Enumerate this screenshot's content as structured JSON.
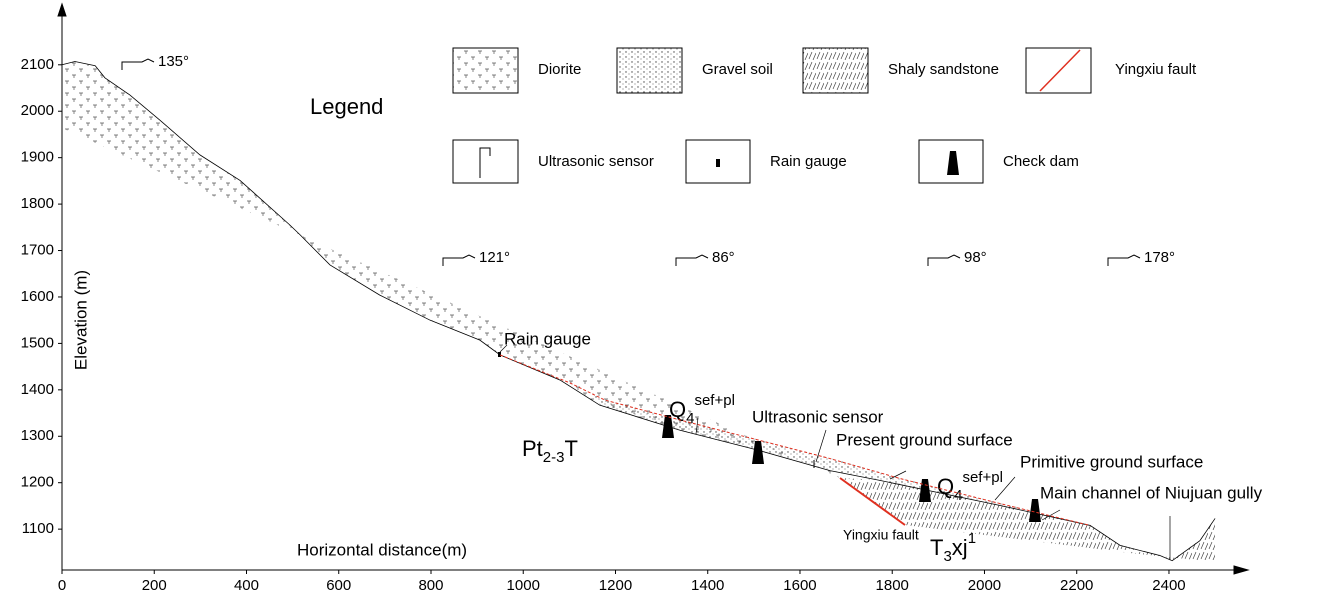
{
  "chart_data": {
    "type": "profile",
    "xlabel": "Horizontal distance(m)",
    "ylabel": "Elevation (m)",
    "xlim": [
      0,
      2554
    ],
    "ylim": [
      1012,
      2218
    ],
    "xticks": [
      0,
      200,
      400,
      600,
      800,
      1000,
      1200,
      1400,
      1600,
      1800,
      2000,
      2200,
      2400
    ],
    "yticks": [
      1100,
      1200,
      1300,
      1400,
      1500,
      1600,
      1700,
      1800,
      1900,
      2000,
      2100
    ],
    "series": [
      {
        "name": "Primitive ground surface",
        "color": "#000000",
        "x": [
          0,
          28,
          72,
          93,
          147,
          212,
          299,
          386,
          494,
          516,
          581,
          689,
          798,
          906,
          950,
          1080,
          1166,
          1340,
          1513,
          1665,
          1773,
          2034,
          2229,
          2294,
          2381,
          2407,
          2467,
          2500
        ],
        "values": [
          2100,
          2107,
          2098,
          2072,
          2035,
          1981,
          1906,
          1851,
          1755,
          1734,
          1669,
          1604,
          1550,
          1507,
          1475,
          1421,
          1367,
          1313,
          1269,
          1226,
          1205,
          1151,
          1108,
          1065,
          1043,
          1032,
          1075,
          1123
        ]
      },
      {
        "name": "Present ground surface",
        "color": "#e03020",
        "x": [
          950,
          1101,
          1177,
          1340,
          1513,
          1665,
          1817,
          2034,
          2229
        ],
        "values": [
          1475,
          1415,
          1378,
          1335,
          1291,
          1252,
          1209,
          1155,
          1108
        ]
      }
    ],
    "legend": {
      "title": "Legend",
      "items": [
        "Diorite",
        "Gravel soil",
        "Shaly sandstone",
        "Yingxiu fault",
        "Ultrasonic sensor",
        "Rain gauge",
        "Check dam"
      ]
    },
    "annotations": {
      "rain_gauge": "Rain gauge",
      "ultrasonic_sensor": "Ultrasonic sensor",
      "channel": "Main channel of Niujuan gully",
      "fault": "Yingxiu fault"
    },
    "slopes": [
      "135°",
      "121°",
      "86°",
      "98°",
      "178°"
    ],
    "formations": [
      {
        "main": "Pt",
        "sub": "2-3",
        "tail": "T"
      },
      {
        "main": "T",
        "sub": "3",
        "tail": "xj",
        "sup": "1"
      },
      {
        "main": "Q",
        "sub": "4",
        "sup": "sef+pl"
      },
      {
        "main": "Q",
        "sub": "4",
        "sup": "sef+pl"
      }
    ]
  }
}
